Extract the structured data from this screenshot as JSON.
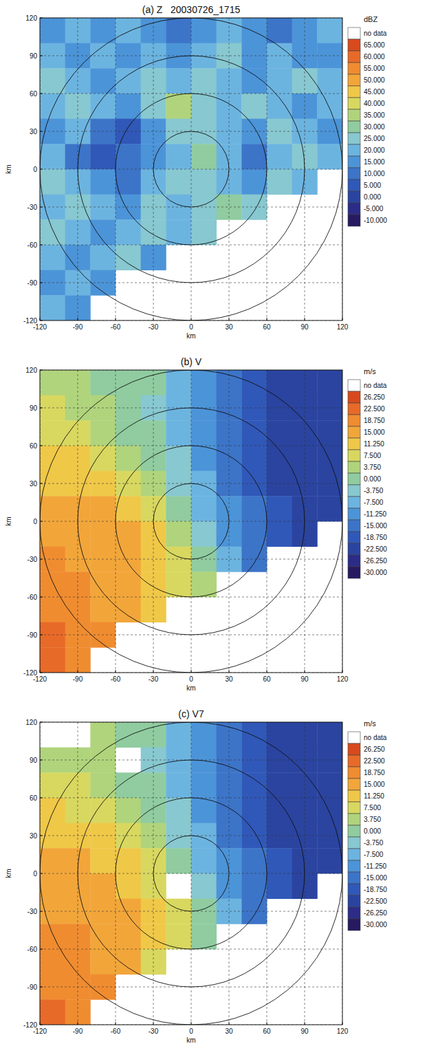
{
  "chart_data": [
    {
      "type": "heatmap",
      "title": "(a) Z   20030726_1715",
      "x_label": "km",
      "y_label": "km",
      "xlim": [
        -120,
        120
      ],
      "ylim": [
        -120,
        120
      ],
      "xticks": [
        -120,
        -90,
        -60,
        -30,
        0,
        30,
        60,
        90,
        120
      ],
      "yticks": [
        -120,
        -90,
        -60,
        -30,
        0,
        30,
        60,
        90,
        120
      ],
      "grid": true,
      "range_rings": [
        30,
        60,
        90,
        120
      ],
      "x": [
        -110,
        -90,
        -70,
        -50,
        -30,
        -10,
        10,
        30,
        50,
        70,
        90,
        110
      ],
      "y": [
        110,
        90,
        70,
        50,
        30,
        10,
        -10,
        -30,
        -50,
        -70,
        -90,
        -110
      ],
      "cells": [
        [
          15,
          20,
          15,
          20,
          15,
          10,
          15,
          20,
          15,
          10,
          15,
          20
        ],
        [
          20,
          15,
          20,
          15,
          20,
          15,
          20,
          25,
          15,
          20,
          15,
          15
        ],
        [
          25,
          20,
          15,
          20,
          25,
          20,
          25,
          20,
          15,
          20,
          25,
          20
        ],
        [
          20,
          25,
          20,
          15,
          25,
          35,
          25,
          20,
          25,
          20,
          15,
          20
        ],
        [
          15,
          20,
          10,
          5,
          15,
          25,
          25,
          20,
          15,
          25,
          20,
          15
        ],
        [
          20,
          10,
          5,
          10,
          15,
          20,
          30,
          20,
          10,
          20,
          25,
          20
        ],
        [
          25,
          20,
          15,
          10,
          20,
          25,
          25,
          20,
          15,
          25,
          20,
          null
        ],
        [
          20,
          25,
          20,
          15,
          25,
          20,
          25,
          30,
          25,
          null,
          null,
          null
        ],
        [
          25,
          20,
          15,
          20,
          25,
          20,
          25,
          null,
          null,
          null,
          null,
          null
        ],
        [
          20,
          15,
          20,
          25,
          15,
          null,
          null,
          null,
          null,
          null,
          null,
          null
        ],
        [
          15,
          20,
          15,
          null,
          null,
          null,
          null,
          null,
          null,
          null,
          null,
          null
        ],
        [
          20,
          15,
          null,
          null,
          null,
          null,
          null,
          null,
          null,
          null,
          null,
          null
        ]
      ],
      "colorbar": {
        "label": "dBZ",
        "no_data_label": "no data",
        "ticks": [
          {
            "value": 65,
            "label": "65.000"
          },
          {
            "value": 60,
            "label": "60.000"
          },
          {
            "value": 55,
            "label": "55.000"
          },
          {
            "value": 50,
            "label": "50.000"
          },
          {
            "value": 45,
            "label": "45.000"
          },
          {
            "value": 40,
            "label": "40.000"
          },
          {
            "value": 35,
            "label": "35.000"
          },
          {
            "value": 30,
            "label": "30.000"
          },
          {
            "value": 25,
            "label": "25.000"
          },
          {
            "value": 20,
            "label": "20.000"
          },
          {
            "value": 15,
            "label": "15.000"
          },
          {
            "value": 10,
            "label": "10.000"
          },
          {
            "value": 5,
            "label": "5.000"
          },
          {
            "value": 0,
            "label": "0.000"
          },
          {
            "value": -5,
            "label": "-5.000"
          },
          {
            "value": -10,
            "label": "-10.000"
          }
        ],
        "colors": [
          "#d84a1e",
          "#e86a28",
          "#f08c30",
          "#f2a63a",
          "#f0c848",
          "#d8d860",
          "#b0d47c",
          "#90cca0",
          "#88c8d0",
          "#6cb4e0",
          "#4c94d8",
          "#3c74c8",
          "#3058b8",
          "#2a44a0",
          "#2c2c88",
          "#281a60"
        ]
      }
    },
    {
      "type": "heatmap",
      "title": "(b) V",
      "x_label": "km",
      "y_label": "km",
      "xlim": [
        -120,
        120
      ],
      "ylim": [
        -120,
        120
      ],
      "xticks": [
        -120,
        -90,
        -60,
        -30,
        0,
        30,
        60,
        90,
        120
      ],
      "yticks": [
        -120,
        -90,
        -60,
        -30,
        0,
        30,
        60,
        90,
        120
      ],
      "grid": true,
      "range_rings": [
        30,
        60,
        90,
        120
      ],
      "x": [
        -110,
        -90,
        -70,
        -50,
        -30,
        -10,
        10,
        30,
        50,
        70,
        90,
        110
      ],
      "y": [
        110,
        90,
        70,
        50,
        30,
        10,
        -10,
        -30,
        -50,
        -70,
        -90,
        -110
      ],
      "cells": [
        [
          5,
          5,
          3,
          2,
          0,
          -5,
          -10,
          -15,
          -18,
          -20,
          -20,
          -20
        ],
        [
          8,
          6,
          4,
          2,
          -1,
          -6,
          -11,
          -15,
          -18,
          -20,
          -20,
          -21
        ],
        [
          10,
          8,
          6,
          3,
          0,
          -5,
          -10,
          -14,
          -17,
          -19,
          -20,
          -21
        ],
        [
          12,
          12,
          9,
          6,
          2,
          -3,
          -9,
          -13,
          -17,
          -19,
          -20,
          -20
        ],
        [
          14,
          14,
          12,
          9,
          5,
          -1,
          -7,
          -12,
          -16,
          -19,
          -20,
          -20
        ],
        [
          16,
          16,
          15,
          13,
          9,
          2,
          -5,
          -11,
          -15,
          -18,
          -19,
          -20
        ],
        [
          17,
          17,
          16,
          15,
          12,
          6,
          -2,
          -9,
          -14,
          -17,
          -19,
          null
        ],
        [
          19,
          18,
          17,
          16,
          14,
          10,
          2,
          -6,
          -12,
          null,
          null,
          null
        ],
        [
          21,
          19,
          18,
          16,
          14,
          10,
          4,
          null,
          null,
          null,
          null,
          null
        ],
        [
          22,
          20,
          18,
          16,
          12,
          null,
          null,
          null,
          null,
          null,
          null,
          null
        ],
        [
          23,
          22,
          20,
          null,
          null,
          null,
          null,
          null,
          null,
          null,
          null,
          null
        ],
        [
          24,
          22,
          null,
          null,
          null,
          null,
          null,
          null,
          null,
          null,
          null,
          null
        ]
      ],
      "colorbar": {
        "label": "m/s",
        "no_data_label": "no data",
        "ticks": [
          {
            "value": 26.25,
            "label": "26.250"
          },
          {
            "value": 22.5,
            "label": "22.500"
          },
          {
            "value": 18.75,
            "label": "18.750"
          },
          {
            "value": 15,
            "label": "15.000"
          },
          {
            "value": 11.25,
            "label": "11.250"
          },
          {
            "value": 7.5,
            "label": "7.500"
          },
          {
            "value": 3.75,
            "label": "3.750"
          },
          {
            "value": 0,
            "label": "0.000"
          },
          {
            "value": -3.75,
            "label": "-3.750"
          },
          {
            "value": -7.5,
            "label": "-7.500"
          },
          {
            "value": -11.25,
            "label": "-11.250"
          },
          {
            "value": -15,
            "label": "-15.000"
          },
          {
            "value": -18.75,
            "label": "-18.750"
          },
          {
            "value": -22.5,
            "label": "-22.500"
          },
          {
            "value": -26.25,
            "label": "-26.250"
          },
          {
            "value": -30,
            "label": "-30.000"
          }
        ],
        "colors": [
          "#d84a1e",
          "#e86a28",
          "#f08c30",
          "#f2a63a",
          "#f0c848",
          "#d8d860",
          "#b0d47c",
          "#90cca0",
          "#88c8d0",
          "#6cb4e0",
          "#4c94d8",
          "#3c74c8",
          "#3058b8",
          "#2a44a0",
          "#2c2c88",
          "#281a60"
        ]
      }
    },
    {
      "type": "heatmap",
      "title": "(c) V7",
      "x_label": "km",
      "y_label": "km",
      "xlim": [
        -120,
        120
      ],
      "ylim": [
        -120,
        120
      ],
      "xticks": [
        -120,
        -90,
        -60,
        -30,
        0,
        30,
        60,
        90,
        120
      ],
      "yticks": [
        -120,
        -90,
        -60,
        -30,
        0,
        30,
        60,
        90,
        120
      ],
      "grid": true,
      "range_rings": [
        30,
        60,
        90,
        120
      ],
      "x": [
        -110,
        -90,
        -70,
        -50,
        -30,
        -10,
        10,
        30,
        50,
        70,
        90,
        110
      ],
      "y": [
        110,
        90,
        70,
        50,
        30,
        10,
        -10,
        -30,
        -50,
        -70,
        -90,
        -110
      ],
      "cells": [
        [
          null,
          null,
          4,
          2,
          0,
          -5,
          -10,
          -15,
          -18,
          -20,
          -20,
          -20
        ],
        [
          7,
          6,
          4,
          null,
          -1,
          -6,
          -11,
          -15,
          -18,
          -20,
          -20,
          -21
        ],
        [
          9,
          8,
          6,
          3,
          0,
          -5,
          -10,
          -14,
          -17,
          -19,
          -20,
          -21
        ],
        [
          12,
          11,
          9,
          6,
          2,
          -3,
          -9,
          -13,
          -17,
          -19,
          -20,
          -20
        ],
        [
          14,
          13,
          12,
          9,
          5,
          -1,
          -7,
          -12,
          -16,
          -19,
          -20,
          -20
        ],
        [
          15,
          15,
          14,
          12,
          8,
          2,
          -5,
          -11,
          -15,
          -18,
          -19,
          -20
        ],
        [
          17,
          16,
          16,
          14,
          11,
          null,
          -2,
          -9,
          -14,
          -17,
          -19,
          null
        ],
        [
          18,
          17,
          16,
          15,
          13,
          9,
          2,
          -6,
          -12,
          null,
          null,
          null
        ],
        [
          20,
          19,
          17,
          16,
          13,
          9,
          3,
          null,
          null,
          null,
          null,
          null
        ],
        [
          21,
          20,
          17,
          15,
          11,
          null,
          null,
          null,
          null,
          null,
          null,
          null
        ],
        [
          22,
          21,
          19,
          null,
          null,
          null,
          null,
          null,
          null,
          null,
          null,
          null
        ],
        [
          23,
          21,
          null,
          null,
          null,
          null,
          null,
          null,
          null,
          null,
          null,
          null
        ]
      ],
      "colorbar": {
        "label": "m/s",
        "no_data_label": "no data",
        "ticks": [
          {
            "value": 26.25,
            "label": "26.250"
          },
          {
            "value": 22.5,
            "label": "22.500"
          },
          {
            "value": 18.75,
            "label": "18.750"
          },
          {
            "value": 15,
            "label": "15.000"
          },
          {
            "value": 11.25,
            "label": "11.250"
          },
          {
            "value": 7.5,
            "label": "7.500"
          },
          {
            "value": 3.75,
            "label": "3.750"
          },
          {
            "value": 0,
            "label": "0.000"
          },
          {
            "value": -3.75,
            "label": "-3.750"
          },
          {
            "value": -7.5,
            "label": "-7.500"
          },
          {
            "value": -11.25,
            "label": "-11.250"
          },
          {
            "value": -15,
            "label": "-15.000"
          },
          {
            "value": -18.75,
            "label": "-18.750"
          },
          {
            "value": -22.5,
            "label": "-22.500"
          },
          {
            "value": -26.25,
            "label": "-26.250"
          },
          {
            "value": -30,
            "label": "-30.000"
          }
        ],
        "colors": [
          "#d84a1e",
          "#e86a28",
          "#f08c30",
          "#f2a63a",
          "#f0c848",
          "#d8d860",
          "#b0d47c",
          "#90cca0",
          "#88c8d0",
          "#6cb4e0",
          "#4c94d8",
          "#3c74c8",
          "#3058b8",
          "#2a44a0",
          "#2c2c88",
          "#281a60"
        ]
      }
    }
  ]
}
